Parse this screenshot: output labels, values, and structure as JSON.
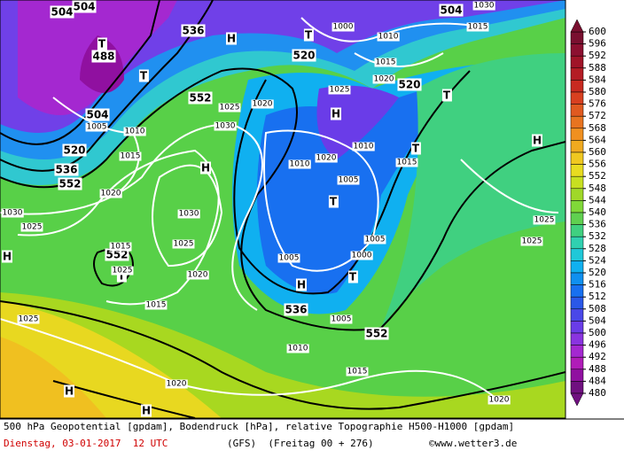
{
  "footer": {
    "line1": "500 hPa Geopotential [gpdam], Bodendruck [hPa], relative Topographie H500-H1000 [gpdam]",
    "date": "Dienstag, 03-01-2017  12 UTC",
    "model": "(GFS)  (Freitag 00 + 276)",
    "credit": "©www.wetter3.de"
  },
  "colorbar": {
    "ticks": [
      600,
      596,
      592,
      588,
      584,
      580,
      576,
      572,
      568,
      564,
      560,
      556,
      552,
      548,
      544,
      540,
      536,
      532,
      528,
      524,
      520,
      516,
      512,
      508,
      504,
      500,
      496,
      492,
      488,
      484,
      480
    ],
    "colors": [
      "#7a1030",
      "#8c1030",
      "#a01428",
      "#b41c24",
      "#c82a20",
      "#d84020",
      "#e05a20",
      "#e87420",
      "#f09020",
      "#f0aa20",
      "#f0c820",
      "#e8dc20",
      "#c8e020",
      "#a0d828",
      "#80d838",
      "#60d050",
      "#40d080",
      "#30d0b0",
      "#20c8d8",
      "#10b0f0",
      "#1090f0",
      "#1870f0",
      "#2a58e8",
      "#4a48e8",
      "#6a3ce8",
      "#8a34e0",
      "#a428d0",
      "#b01cb8",
      "#9010a0",
      "#701080"
    ]
  },
  "map": {
    "labels": [
      "504",
      "504",
      "488",
      "504",
      "520",
      "536",
      "552",
      "536",
      "552",
      "520",
      "520",
      "504",
      "552",
      "536",
      "552",
      "H",
      "H",
      "H",
      "H",
      "H",
      "H",
      "H",
      "T",
      "T",
      "T",
      "T",
      "T",
      "T",
      "T",
      "T",
      "H"
    ],
    "isobars": [
      "1030",
      "1025",
      "1020",
      "1030",
      "1025",
      "1020",
      "1015",
      "1025",
      "1020",
      "1010",
      "1015",
      "1005",
      "1005",
      "1005",
      "1010",
      "1010",
      "1020",
      "1025",
      "1030",
      "1025",
      "1020",
      "1010",
      "1015",
      "1000",
      "1010",
      "1015",
      "1020",
      "1015",
      "1030",
      "1025",
      "1025",
      "1020",
      "1015",
      "1025",
      "1005",
      "1005",
      "1000",
      "1015"
    ]
  }
}
